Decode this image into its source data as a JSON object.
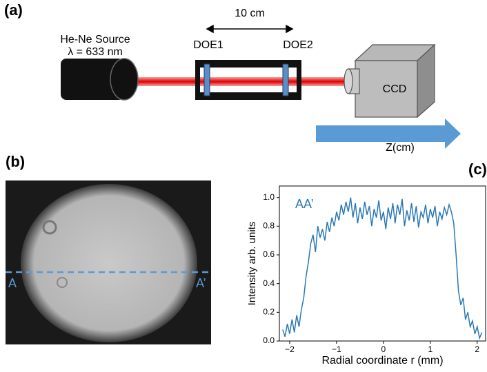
{
  "panel_a": {
    "label": "(a)",
    "source": "He-Ne Source",
    "wavelength": "λ = 633 nm",
    "distance": "10 cm",
    "doe1": "DOE1",
    "doe2": "DOE2",
    "camera": "CCD",
    "axis": "Z(cm)"
  },
  "panel_b": {
    "label": "(b)",
    "left_marker": "A",
    "right_marker": "A’"
  },
  "chart_data": {
    "type": "line",
    "panel_label": "(c)",
    "annotation": "AA’",
    "x_label": "Radial coordinate r (mm)",
    "y_label": "Intensity arb. units",
    "color": "#2a78b5",
    "xlim": [
      -2.22,
      2.18
    ],
    "ylim": [
      0,
      1.08
    ],
    "xticks": [
      {
        "value": -2,
        "label": "−2"
      },
      {
        "value": -1,
        "label": "−1"
      },
      0,
      1,
      2
    ],
    "yticks": [
      {
        "value": 0,
        "label": "0.0"
      },
      0.2,
      0.4,
      0.6,
      0.8,
      {
        "value": 1,
        "label": "1.0"
      }
    ],
    "x": [
      -2.15,
      -2.1,
      -2.05,
      -2.0,
      -1.95,
      -1.9,
      -1.85,
      -1.8,
      -1.75,
      -1.7,
      -1.65,
      -1.6,
      -1.55,
      -1.5,
      -1.45,
      -1.4,
      -1.35,
      -1.3,
      -1.25,
      -1.2,
      -1.15,
      -1.1,
      -1.05,
      -1.0,
      -0.95,
      -0.9,
      -0.85,
      -0.8,
      -0.75,
      -0.7,
      -0.65,
      -0.6,
      -0.55,
      -0.5,
      -0.45,
      -0.4,
      -0.35,
      -0.3,
      -0.25,
      -0.2,
      -0.15,
      -0.1,
      -0.05,
      0,
      0.05,
      0.1,
      0.15,
      0.2,
      0.25,
      0.3,
      0.35,
      0.4,
      0.45,
      0.5,
      0.55,
      0.6,
      0.65,
      0.7,
      0.75,
      0.8,
      0.85,
      0.9,
      0.95,
      1.0,
      1.05,
      1.1,
      1.15,
      1.2,
      1.25,
      1.3,
      1.35,
      1.4,
      1.45,
      1.5,
      1.55,
      1.6,
      1.65,
      1.7,
      1.75,
      1.8,
      1.85,
      1.9,
      1.95,
      2.0,
      2.05,
      2.1
    ],
    "values": [
      0.08,
      0.03,
      0.12,
      0.05,
      0.15,
      0.06,
      0.18,
      0.1,
      0.22,
      0.3,
      0.45,
      0.55,
      0.68,
      0.74,
      0.62,
      0.8,
      0.72,
      0.78,
      0.7,
      0.83,
      0.76,
      0.86,
      0.8,
      0.9,
      0.84,
      0.95,
      0.88,
      0.97,
      0.9,
      1.0,
      0.86,
      0.96,
      0.82,
      0.93,
      0.85,
      0.97,
      0.88,
      0.94,
      0.8,
      0.92,
      0.86,
      0.98,
      0.84,
      0.9,
      0.78,
      0.93,
      0.85,
      0.96,
      0.82,
      0.95,
      0.88,
      0.99,
      0.8,
      0.91,
      0.84,
      0.96,
      0.83,
      0.94,
      0.79,
      0.9,
      0.86,
      0.95,
      0.82,
      0.92,
      0.86,
      0.94,
      0.8,
      0.9,
      0.85,
      0.93,
      0.88,
      0.95,
      0.9,
      0.82,
      0.6,
      0.35,
      0.25,
      0.3,
      0.15,
      0.2,
      0.1,
      0.14,
      0.05,
      0.1,
      0.02,
      0.06
    ]
  }
}
